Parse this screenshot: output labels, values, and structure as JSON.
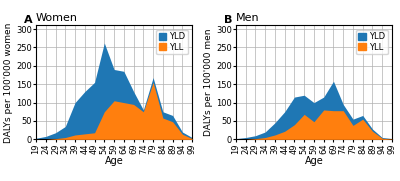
{
  "chart_data": [
    {
      "type": "area",
      "title": "Women",
      "annotations": [
        {
          "text": "A"
        }
      ],
      "xlabel": "Age",
      "ylabel": "DALYs per 100'000 women",
      "x": [
        19,
        24,
        29,
        34,
        39,
        44,
        49,
        54,
        59,
        64,
        69,
        74,
        79,
        84,
        89,
        94,
        99
      ],
      "series": [
        {
          "name": "YLD",
          "values": [
            3,
            8,
            18,
            35,
            100,
            130,
            155,
            262,
            190,
            185,
            130,
            80,
            168,
            75,
            65,
            20,
            5
          ]
        },
        {
          "name": "YLL",
          "values": [
            0,
            0,
            2,
            5,
            12,
            15,
            18,
            75,
            105,
            100,
            95,
            75,
            155,
            58,
            48,
            14,
            2
          ]
        }
      ],
      "xlim": [
        19,
        99
      ],
      "xticks": [
        19,
        24,
        29,
        34,
        39,
        44,
        49,
        54,
        59,
        64,
        69,
        74,
        79,
        84,
        89,
        94,
        99
      ],
      "ylim": [
        0,
        310
      ],
      "yticks": [
        0,
        50,
        100,
        150,
        200,
        250,
        300
      ],
      "grid": true,
      "legend": "upper right"
    },
    {
      "type": "area",
      "title": "Men",
      "annotations": [
        {
          "text": "B"
        }
      ],
      "xlabel": "Age",
      "ylabel": "DALYs per 100'000 men",
      "x": [
        19,
        24,
        29,
        34,
        39,
        44,
        49,
        54,
        59,
        64,
        69,
        74,
        79,
        84,
        89,
        94,
        99
      ],
      "series": [
        {
          "name": "YLD",
          "values": [
            2,
            5,
            10,
            20,
            45,
            75,
            115,
            120,
            100,
            115,
            158,
            95,
            55,
            65,
            28,
            5,
            2
          ]
        },
        {
          "name": "YLL",
          "values": [
            0,
            0,
            2,
            5,
            12,
            22,
            40,
            68,
            48,
            80,
            78,
            78,
            38,
            55,
            22,
            3,
            1
          ]
        }
      ],
      "xlim": [
        19,
        99
      ],
      "xticks": [
        19,
        24,
        29,
        34,
        39,
        44,
        49,
        54,
        59,
        64,
        69,
        74,
        79,
        84,
        89,
        94,
        99
      ],
      "ylim": [
        0,
        310
      ],
      "yticks": [
        0,
        50,
        100,
        150,
        200,
        250,
        300
      ],
      "grid": true,
      "legend": "upper right"
    }
  ]
}
